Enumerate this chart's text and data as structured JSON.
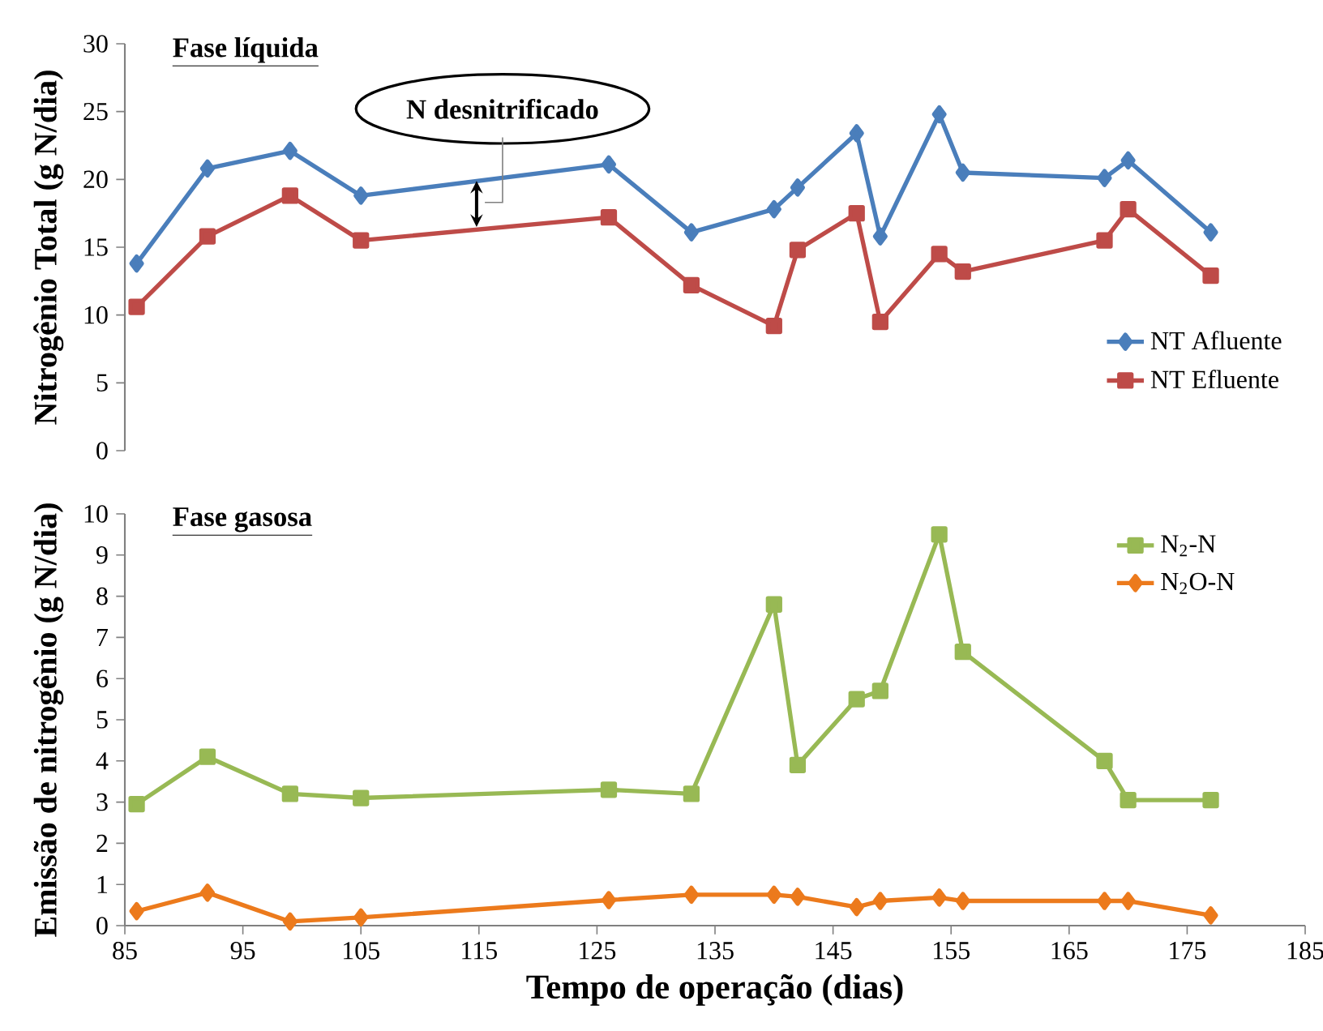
{
  "chart_data": [
    {
      "type": "line",
      "title": "Fase líquida",
      "ylabel": "Nitrogênio Total (g N/dia)",
      "xlim": [
        85,
        185
      ],
      "ylim": [
        0,
        30
      ],
      "yticks": [
        0,
        5,
        10,
        15,
        20,
        25,
        30
      ],
      "tick_labels": "y",
      "legend": "right",
      "line_style": "solid",
      "annotations": [
        "N desnitrificado"
      ],
      "x": [
        86,
        92,
        99,
        105,
        126,
        133,
        140,
        142,
        147,
        149,
        154,
        156,
        168,
        170,
        177
      ],
      "series": [
        {
          "name": "NT Afluente",
          "color": "#4a7ebb",
          "marker": "diamond",
          "values": [
            13.8,
            20.8,
            22.1,
            18.8,
            21.1,
            16.1,
            17.8,
            19.4,
            23.4,
            15.8,
            24.8,
            20.5,
            20.1,
            21.4,
            16.1
          ]
        },
        {
          "name": "NT Efluente",
          "color": "#be4b48",
          "marker": "square",
          "values": [
            10.6,
            15.8,
            18.8,
            15.5,
            17.2,
            12.2,
            9.2,
            14.8,
            17.5,
            9.5,
            14.5,
            13.2,
            15.5,
            17.8,
            12.9
          ]
        }
      ]
    },
    {
      "type": "line",
      "title": "Fase gasosa",
      "xlabel": "Tempo de operação (dias)",
      "ylabel": "Emissão de nitrogênio (g N/dia)",
      "xlim": [
        85,
        185
      ],
      "xticks": [
        85,
        95,
        105,
        115,
        125,
        135,
        145,
        155,
        165,
        175,
        185
      ],
      "ylim": [
        0,
        10
      ],
      "yticks": [
        0,
        1,
        2,
        3,
        4,
        5,
        6,
        7,
        8,
        9,
        10
      ],
      "legend": "top right",
      "line_style": "solid",
      "x": [
        86,
        92,
        99,
        105,
        126,
        133,
        140,
        142,
        147,
        149,
        154,
        156,
        168,
        170,
        177
      ],
      "series": [
        {
          "name": "N$_{2}$-N",
          "color": "#98b954",
          "marker": "square",
          "values": [
            2.95,
            4.1,
            3.2,
            3.1,
            3.3,
            3.2,
            7.8,
            3.9,
            5.5,
            5.7,
            9.5,
            6.65,
            4.0,
            3.05,
            3.05
          ]
        },
        {
          "name": "N$_{2}$O-N",
          "color": "#ec7a1c",
          "marker": "diamond",
          "values": [
            0.35,
            0.8,
            0.1,
            0.2,
            0.62,
            0.75,
            0.75,
            0.7,
            0.45,
            0.6,
            0.68,
            0.6,
            0.6,
            0.6,
            0.25
          ]
        }
      ]
    }
  ]
}
